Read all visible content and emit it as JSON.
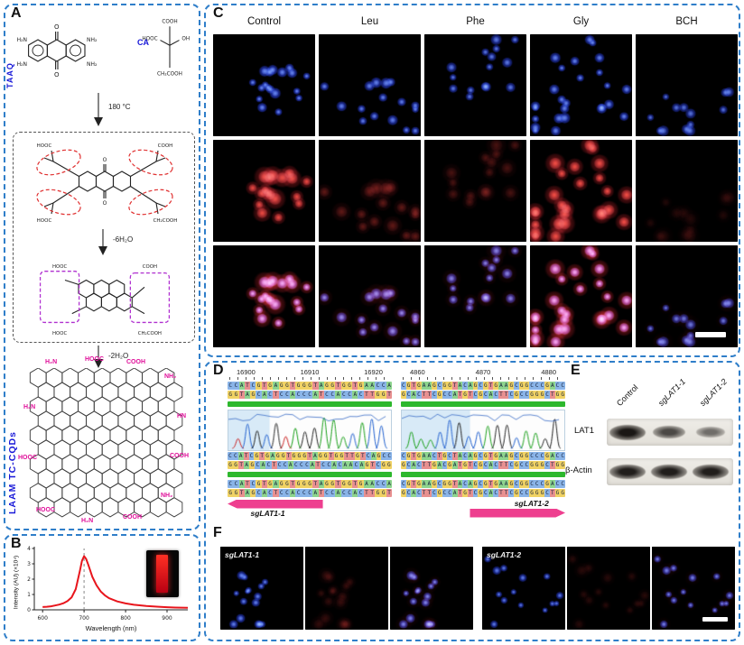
{
  "colors": {
    "panel_border": "#2f7ec9",
    "blue_label": "#1818d8",
    "magenta_label": "#e0109a",
    "spectrum_red": "#e8151c",
    "green_bar": "#2db82d",
    "arrow_pink": "#ee3f8f"
  },
  "panel_a": {
    "label": "A",
    "reagent_left": "TAAQ",
    "reagent_right": "CA",
    "taaq_labels": {
      "o_top": "O",
      "o_bottom": "O",
      "nh2_tl": "H₂N",
      "nh2_tr": "NH₂",
      "nh2_bl": "H₂N",
      "nh2_br": "NH₂"
    },
    "ca_labels": {
      "cooh": "COOH",
      "oh": "OH",
      "hooc": "HOOC",
      "ch2cooh": "CH₂COOH"
    },
    "step1": "180 °C",
    "step2": "-6H₂O",
    "step3": "-2H₂O",
    "intermediate_labels": {
      "tl": "HOOC",
      "tr": "COOH",
      "bl": "HOOC",
      "br": "CH₂COOH"
    },
    "product2_labels": {
      "tl": "HOOC",
      "tr": "COOH",
      "bl": "HOOC",
      "br": "CH₂COOH"
    },
    "product_name": "LAAM TC-CQDs",
    "edge_groups": [
      "H₂N",
      "HOOC",
      "COOH",
      "NH₂",
      "HN",
      "COOH",
      "NH₂",
      "COOH",
      "H₂N",
      "HOOC",
      "HOOC",
      "H₂N"
    ]
  },
  "panel_b": {
    "label": "B"
  },
  "chart_data": {
    "type": "line",
    "title": "",
    "xlabel": "Wavelength (nm)",
    "ylabel": "Intensity (AU) (×10⁴)",
    "xlim": [
      580,
      950
    ],
    "ylim": [
      0,
      4
    ],
    "xticks": [
      600,
      700,
      800,
      900
    ],
    "yticks": [
      0,
      1,
      2,
      3,
      4
    ],
    "peak_marker_nm": 700,
    "grid": false,
    "legend": "none",
    "series": [
      {
        "name": "spectrum",
        "color": "#e8151c",
        "x": [
          600,
          610,
          620,
          630,
          640,
          650,
          660,
          670,
          680,
          690,
          695,
          700,
          705,
          710,
          720,
          730,
          740,
          750,
          760,
          780,
          800,
          820,
          850,
          880,
          900,
          920,
          950
        ],
        "y": [
          0.18,
          0.2,
          0.23,
          0.28,
          0.34,
          0.43,
          0.57,
          0.82,
          1.35,
          2.55,
          3.2,
          3.5,
          3.32,
          2.95,
          2.15,
          1.6,
          1.2,
          0.95,
          0.76,
          0.55,
          0.42,
          0.33,
          0.25,
          0.2,
          0.17,
          0.15,
          0.13
        ]
      }
    ]
  },
  "panel_c": {
    "label": "C",
    "columns": [
      "Control",
      "Leu",
      "Phe",
      "Gly",
      "BCH"
    ],
    "blue_intensity": [
      0.95,
      0.9,
      0.85,
      0.92,
      0.8
    ],
    "red_intensity": [
      0.95,
      0.3,
      0.22,
      1.0,
      0.1
    ],
    "cell_count": [
      18,
      16,
      15,
      26,
      13
    ]
  },
  "panel_d": {
    "label": "D",
    "blocks": [
      {
        "ruler": [
          "16900",
          "16910",
          "16920"
        ],
        "seq1a": "CCATCGTGAGGTGGGTAGGTGGTGAACCA",
        "seq1b": "GGTAGCACTCCACCCATCCACCACTTGGT",
        "seq2a": "CCATCGTGAGGTGGGTAGGTGGTTGTCAGCC",
        "seq2b": "GGTAGCACTCCACCCATCCACAACAGTCGG",
        "seq3a": "CCATCGTGAGGTGGGTAGGTGGTGAACCA",
        "seq3b": "GGTAGCACTCCACCCATCCACCACTTGGT",
        "sg_label": "sgLAT1-1"
      },
      {
        "ruler": [
          "4860",
          "4870",
          "4880"
        ],
        "seq1a": "CGTGAAGCGGTACAGCGTGAAGCGGCCCGACC",
        "seq1b": "GCACTTCGCCATGTCGCACTTCGCCGGGCTGG",
        "seq2a": "CGTGAACTGCTACAGCGTGAAGCGGCCCGACC",
        "seq2b": "GCACTTGACGATGTCGCACTTCGCCGGGCTGG",
        "seq3a": "CGTGAAGCGGTACAGCGTGAAGCGGCCCGACC",
        "seq3b": "GCACTTCGCCATGTCGCACTTCGCCGGGCTGG",
        "sg_label": "sgLAT1-2"
      }
    ]
  },
  "panel_e": {
    "label": "E",
    "lanes": [
      "Control",
      "sgLAT1-1",
      "sgLAT1-2"
    ],
    "targets": [
      "LAT1",
      "β-Actin"
    ],
    "lat1_band_strength": [
      1.0,
      0.65,
      0.4
    ],
    "actin_band_strength": [
      0.95,
      0.95,
      0.95
    ]
  },
  "panel_f": {
    "label": "F",
    "groups": [
      {
        "label": "sgLAT1-1",
        "blue_intensity": 0.9,
        "red_intensity": 0.15,
        "cell_count": 15
      },
      {
        "label": "sgLAT1-2",
        "blue_intensity": 0.88,
        "red_intensity": 0.12,
        "cell_count": 14
      }
    ]
  }
}
